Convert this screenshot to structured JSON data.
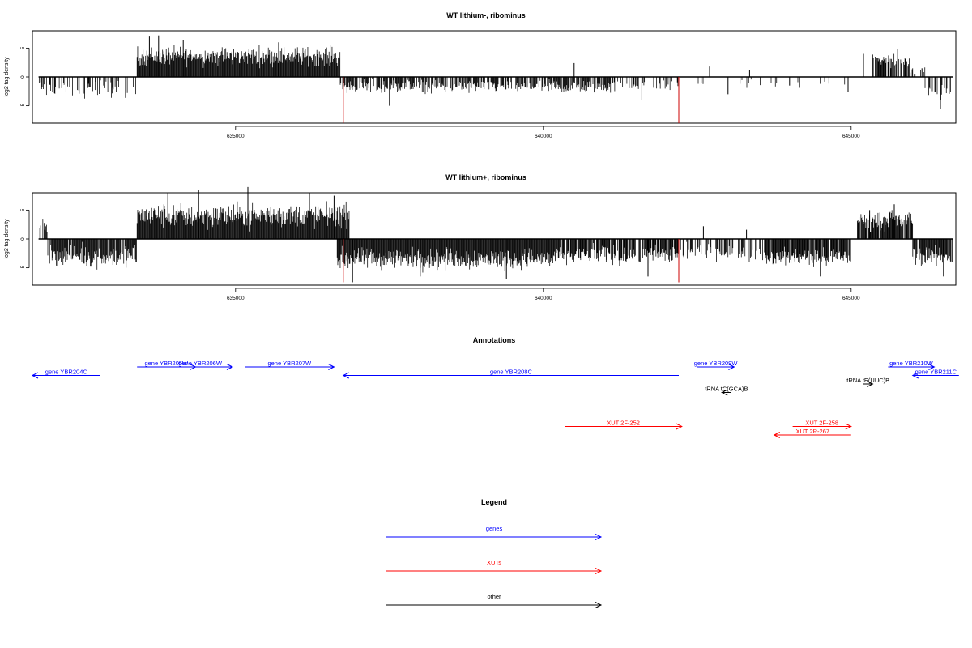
{
  "chart_data": [
    {
      "type": "bar",
      "title": "WT lithium-, ribominus",
      "ylabel": "log2 tag density",
      "xlabel": "",
      "xlim": [
        631700,
        646700
      ],
      "ylim": [
        -8,
        8
      ],
      "x_ticks": [
        "635000",
        "640000",
        "645000"
      ],
      "y_ticks": [
        "-5",
        "0",
        "5"
      ],
      "series": [
        {
          "color": "#000000",
          "segments": [
            {
              "from": 631800,
              "to": 633400,
              "mean": -2.2,
              "spread": 1.2,
              "density": 0.35
            },
            {
              "from": 633400,
              "to": 636700,
              "mean": 3.6,
              "spread": 1.4,
              "density": 1.0
            },
            {
              "from": 636700,
              "to": 641100,
              "mean": -1.7,
              "spread": 1.0,
              "density": 0.75
            },
            {
              "from": 641100,
              "to": 642200,
              "mean": -1.6,
              "spread": 0.8,
              "density": 0.25
            },
            {
              "from": 642200,
              "to": 645000,
              "mean": -1.2,
              "spread": 0.7,
              "density": 0.08
            },
            {
              "from": 645000,
              "to": 645350,
              "mean": 0,
              "spread": 0,
              "density": 0
            },
            {
              "from": 645350,
              "to": 645950,
              "mean": 3.0,
              "spread": 1.1,
              "density": 0.6
            },
            {
              "from": 645950,
              "to": 646200,
              "mean": 1.2,
              "spread": 1.0,
              "density": 0.3
            },
            {
              "from": 646200,
              "to": 646650,
              "mean": -2.5,
              "spread": 1.2,
              "density": 0.6
            }
          ]
        },
        {
          "color": "#cc0000",
          "bars": [
            {
              "x": 636750,
              "y": -8
            },
            {
              "x": 642200,
              "y": -8
            }
          ]
        }
      ],
      "spikes": [
        {
          "x": 633600,
          "y": 7.0
        },
        {
          "x": 633750,
          "y": 7.2
        },
        {
          "x": 634150,
          "y": 6.4
        },
        {
          "x": 635700,
          "y": 6.0
        },
        {
          "x": 637500,
          "y": -5.0
        },
        {
          "x": 640500,
          "y": 2.4
        },
        {
          "x": 641600,
          "y": -4.0
        },
        {
          "x": 642700,
          "y": 1.8
        },
        {
          "x": 643000,
          "y": -3.0
        },
        {
          "x": 643350,
          "y": 1.2
        },
        {
          "x": 644000,
          "y": -1.5
        },
        {
          "x": 644500,
          "y": -1.2
        },
        {
          "x": 644950,
          "y": -2.6
        },
        {
          "x": 645200,
          "y": 4.0
        },
        {
          "x": 645750,
          "y": 4.8
        },
        {
          "x": 646150,
          "y": 1.5
        },
        {
          "x": 646450,
          "y": -5.5
        }
      ]
    },
    {
      "type": "bar",
      "title": "WT lithium+, ribominus",
      "ylabel": "log2 tag density",
      "xlabel": "",
      "xlim": [
        631700,
        646700
      ],
      "ylim": [
        -8,
        8
      ],
      "x_ticks": [
        "635000",
        "640000",
        "645000"
      ],
      "y_ticks": [
        "-5",
        "0",
        "5"
      ],
      "series": [
        {
          "color": "#000000",
          "segments": [
            {
              "from": 631800,
              "to": 631950,
              "mean": 2.5,
              "spread": 1.0,
              "density": 0.7
            },
            {
              "from": 631950,
              "to": 633400,
              "mean": -3.0,
              "spread": 1.6,
              "density": 0.9
            },
            {
              "from": 633400,
              "to": 636850,
              "mean": 4.0,
              "spread": 1.8,
              "density": 1.0
            },
            {
              "from": 636650,
              "to": 640300,
              "mean": -3.4,
              "spread": 1.6,
              "density": 1.0
            },
            {
              "from": 640300,
              "to": 642200,
              "mean": -2.8,
              "spread": 1.4,
              "density": 0.85
            },
            {
              "from": 642200,
              "to": 643600,
              "mean": -2.2,
              "spread": 1.2,
              "density": 0.5
            },
            {
              "from": 643600,
              "to": 645000,
              "mean": -3.2,
              "spread": 1.3,
              "density": 0.95
            },
            {
              "from": 645100,
              "to": 646000,
              "mean": 3.2,
              "spread": 1.4,
              "density": 0.9
            },
            {
              "from": 646000,
              "to": 646650,
              "mean": -3.0,
              "spread": 1.4,
              "density": 0.9
            }
          ]
        },
        {
          "color": "#cc0000",
          "bars": [
            {
              "x": 636750,
              "y": -7.5
            },
            {
              "x": 642200,
              "y": -7.5
            }
          ]
        }
      ],
      "spikes": [
        {
          "x": 633900,
          "y": 8.0
        },
        {
          "x": 634400,
          "y": 8.5
        },
        {
          "x": 635200,
          "y": 9.0
        },
        {
          "x": 636200,
          "y": 8.0
        },
        {
          "x": 636600,
          "y": 7.5
        },
        {
          "x": 636900,
          "y": -7.5
        },
        {
          "x": 638000,
          "y": -6.5
        },
        {
          "x": 639400,
          "y": -7.0
        },
        {
          "x": 641700,
          "y": -6.5
        },
        {
          "x": 642600,
          "y": 2.2
        },
        {
          "x": 643300,
          "y": 1.6
        },
        {
          "x": 644500,
          "y": -6.5
        },
        {
          "x": 645300,
          "y": 5.0
        },
        {
          "x": 645700,
          "y": 6.0
        },
        {
          "x": 646500,
          "y": -6.5
        }
      ]
    },
    {
      "type": "line",
      "title": "Annotations",
      "xlim": [
        631700,
        646700
      ],
      "features": [
        {
          "label": "gene YBR204C",
          "start": 632800,
          "end": 631700,
          "row": 1,
          "color": "#0000ff"
        },
        {
          "label": "gene YBR205W",
          "start": 633400,
          "end": 634350,
          "row": 0,
          "color": "#0000ff"
        },
        {
          "label": "gene YBR206W",
          "start": 633900,
          "end": 634950,
          "row": 0,
          "color": "#0000ff"
        },
        {
          "label": "gene YBR207W",
          "start": 635150,
          "end": 636600,
          "row": 0,
          "color": "#0000ff"
        },
        {
          "label": "gene YBR208C",
          "start": 642200,
          "end": 636750,
          "row": 1,
          "color": "#0000ff"
        },
        {
          "label": "gene YBR209W",
          "start": 642500,
          "end": 643100,
          "row": 0,
          "color": "#0000ff"
        },
        {
          "label": "gene YBR210W",
          "start": 645600,
          "end": 646350,
          "row": 0,
          "color": "#0000ff"
        },
        {
          "label": "gene YBR211C",
          "start": 646750,
          "end": 646000,
          "row": 1,
          "color": "#0000ff"
        },
        {
          "label": "tRNA tC(GCA)B",
          "start": 643050,
          "end": 642900,
          "row": 3,
          "color": "#000000"
        },
        {
          "label": "tRNA tE(UUC)B",
          "start": 645200,
          "end": 645350,
          "row": 2,
          "color": "#000000"
        },
        {
          "label": "XUT 2F-252",
          "start": 640350,
          "end": 642250,
          "row": 7,
          "color": "#ff0000"
        },
        {
          "label": "XUT 2F-258",
          "start": 644050,
          "end": 645000,
          "row": 7,
          "color": "#ff0000"
        },
        {
          "label": "XUT 2R-267",
          "start": 645000,
          "end": 643750,
          "row": 8,
          "color": "#ff0000"
        }
      ]
    },
    {
      "type": "line",
      "title": "Legend",
      "entries": [
        {
          "label": "genes",
          "color": "#0000ff"
        },
        {
          "label": "XUTs",
          "color": "#ff0000"
        },
        {
          "label": "other",
          "color": "#000000"
        }
      ]
    }
  ]
}
